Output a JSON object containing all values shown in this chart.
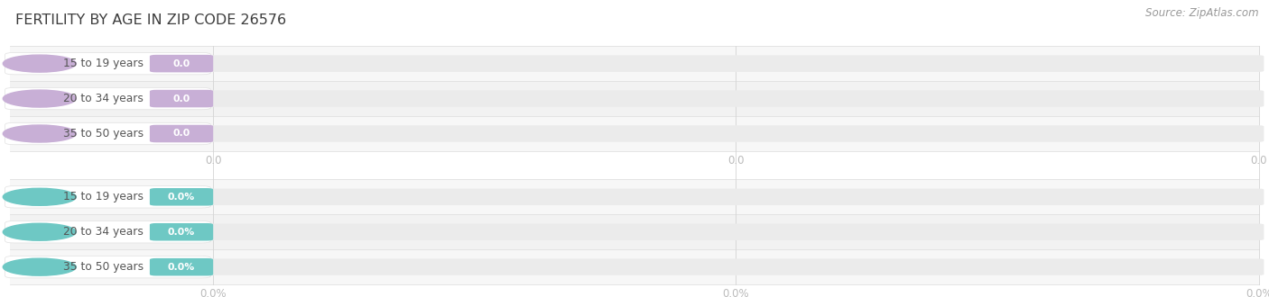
{
  "title": "FERTILITY BY AGE IN ZIP CODE 26576",
  "source_text": "Source: ZipAtlas.com",
  "background_color": "#ffffff",
  "top_section": {
    "categories": [
      "15 to 19 years",
      "20 to 34 years",
      "35 to 50 years"
    ],
    "values": [
      0.0,
      0.0,
      0.0
    ],
    "value_labels": [
      "0.0",
      "0.0",
      "0.0"
    ],
    "bar_color": "#c8afd6",
    "tick_labels": [
      "0.0",
      "0.0",
      "0.0"
    ]
  },
  "bottom_section": {
    "categories": [
      "15 to 19 years",
      "20 to 34 years",
      "35 to 50 years"
    ],
    "values": [
      0.0,
      0.0,
      0.0
    ],
    "value_labels": [
      "0.0%",
      "0.0%",
      "0.0%"
    ],
    "bar_color": "#6ec8c4",
    "tick_labels": [
      "0.0%",
      "0.0%",
      "0.0%"
    ]
  },
  "title_color": "#3d3d3d",
  "source_color": "#999999",
  "tick_label_color": "#bbbbbb",
  "row_line_color": "#e0e0e0",
  "bar_track_color": "#ebebeb",
  "pill_bg_color": "#ffffff",
  "pill_border_color": "#e0e0e0",
  "category_text_color": "#555555",
  "fig_width": 14.06,
  "fig_height": 3.3,
  "dpi": 100
}
